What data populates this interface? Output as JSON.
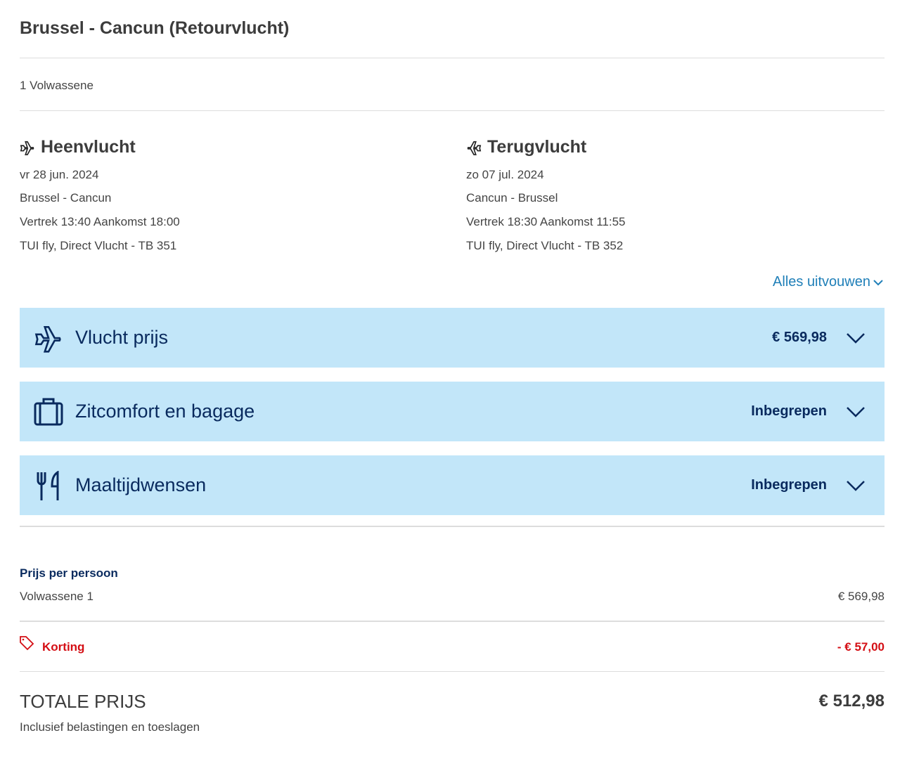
{
  "title": "Brussel - Cancun (Retourvlucht)",
  "passengers": "1 Volwassene",
  "outbound": {
    "heading": "Heenvlucht",
    "date": "vr 28 jun. 2024",
    "route": "Brussel - Cancun",
    "times": "Vertrek 13:40 Aankomst 18:00",
    "carrier": "TUI fly, Direct Vlucht - TB 351"
  },
  "inbound": {
    "heading": "Terugvlucht",
    "date": "zo 07 jul. 2024",
    "route": "Cancun - Brussel",
    "times": "Vertrek 18:30 Aankomst 11:55",
    "carrier": "TUI fly, Direct Vlucht - TB 352"
  },
  "expand_all": "Alles uitvouwen",
  "panels": [
    {
      "icon": "plane-icon",
      "label": "Vlucht prijs",
      "value": "€ 569,98"
    },
    {
      "icon": "suitcase-icon",
      "label": "Zitcomfort en bagage",
      "value": "Inbegrepen"
    },
    {
      "icon": "cutlery-icon",
      "label": "Maaltijdwensen",
      "value": "Inbegrepen"
    }
  ],
  "price_per_person": {
    "heading": "Prijs per persoon",
    "label": "Volwassene 1",
    "value": "€ 569,98"
  },
  "discount": {
    "label": "Korting",
    "value": "- € 57,00"
  },
  "total": {
    "label": "TOTALE PRIJS",
    "value": "€ 512,98",
    "note": "Inclusief belastingen en toeslagen"
  },
  "colors": {
    "panel": "#c2e6f9",
    "navy": "#092a5e",
    "red": "#d40e14",
    "link": "#1f7fb8"
  }
}
